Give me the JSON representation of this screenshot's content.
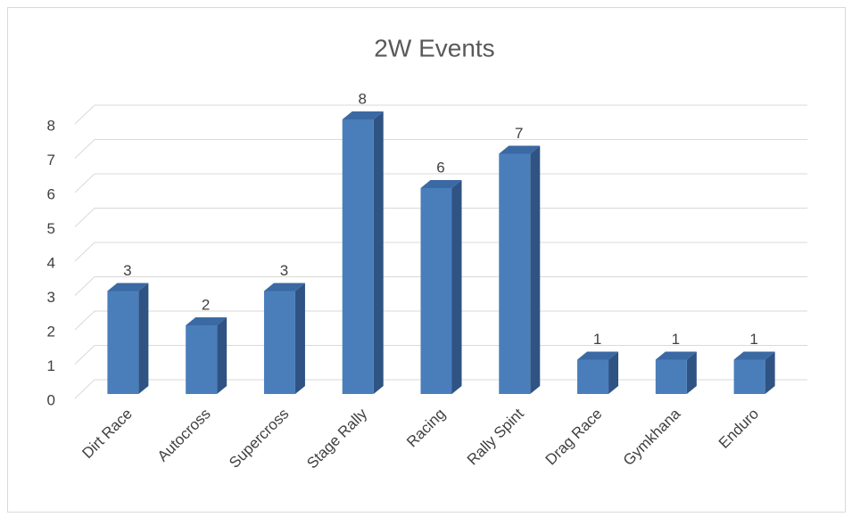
{
  "chart_data": {
    "type": "bar3d",
    "title": "2W Events",
    "categories": [
      "Dirt Race",
      "Autocross",
      "Supercross",
      "Stage Rally",
      "Racing",
      "Rally Spint",
      "Drag Race",
      "Gymkhana",
      "Enduro"
    ],
    "values": [
      3,
      2,
      3,
      8,
      6,
      7,
      1,
      1,
      1
    ],
    "color": "#4a7ebb",
    "ylim": [
      0,
      8
    ],
    "yticks": [
      0,
      1,
      2,
      3,
      4,
      5,
      6,
      7,
      8
    ],
    "grid": true,
    "data_labels": true
  }
}
